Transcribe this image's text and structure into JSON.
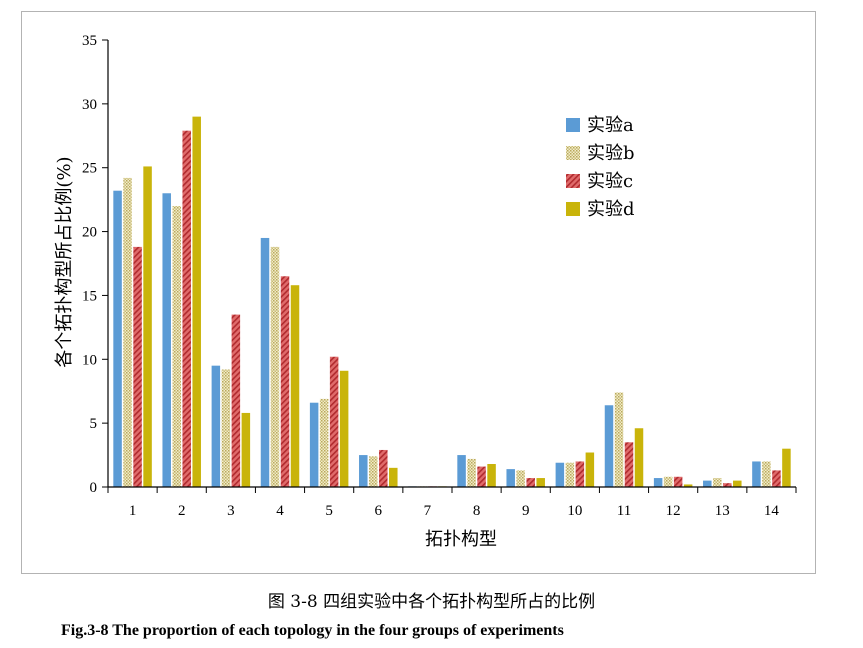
{
  "caption": {
    "zh": "图 3-8  四组实验中各个拓扑构型所占的比例",
    "en": "Fig.3-8 The proportion of each topology in the four groups of experiments"
  },
  "chart_data": {
    "type": "bar",
    "title": "",
    "xlabel": "拓扑构型",
    "ylabel": "各个拓扑构型所占比例(%)",
    "ylim": [
      0,
      35
    ],
    "yticks": [
      0,
      5,
      10,
      15,
      20,
      25,
      30,
      35
    ],
    "categories": [
      "1",
      "2",
      "3",
      "4",
      "5",
      "6",
      "7",
      "8",
      "9",
      "10",
      "11",
      "12",
      "13",
      "14"
    ],
    "legend_position": "top-right",
    "series": [
      {
        "name": "实验a",
        "color": "#5b9bd5",
        "pattern": "solid",
        "values": [
          23.2,
          23.0,
          9.5,
          19.5,
          6.6,
          2.5,
          0.05,
          2.5,
          1.4,
          1.9,
          6.4,
          0.7,
          0.5,
          2.0
        ]
      },
      {
        "name": "实验b",
        "color": "#d8cf9a",
        "pattern": "dots",
        "values": [
          24.2,
          22.0,
          9.2,
          18.8,
          6.9,
          2.4,
          0.05,
          2.2,
          1.3,
          1.9,
          7.4,
          0.8,
          0.7,
          2.0
        ]
      },
      {
        "name": "实验c",
        "color": "#d9464b",
        "pattern": "hatch",
        "values": [
          18.8,
          27.9,
          13.5,
          16.5,
          10.2,
          2.9,
          0.05,
          1.6,
          0.7,
          2.0,
          3.5,
          0.8,
          0.3,
          1.3
        ]
      },
      {
        "name": "实验d",
        "color": "#c9b40a",
        "pattern": "solid",
        "values": [
          25.1,
          29.0,
          5.8,
          15.8,
          9.1,
          1.5,
          0.05,
          1.8,
          0.7,
          2.7,
          4.6,
          0.2,
          0.5,
          3.0
        ]
      }
    ]
  }
}
